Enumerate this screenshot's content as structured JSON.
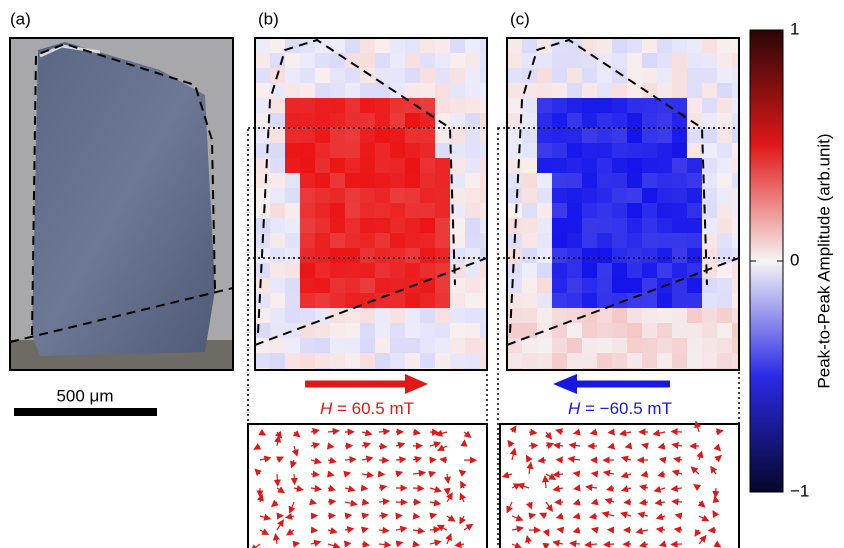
{
  "panels": [
    {
      "label": "(a)"
    },
    {
      "label": "(b)"
    },
    {
      "label": "(c)"
    }
  ],
  "scale_bar": {
    "label": "500 μm"
  },
  "fields": [
    {
      "symbol": "H",
      "text": " = 60.5 mT"
    },
    {
      "symbol": "H",
      "text": " = −60.5 mT"
    }
  ],
  "colorbar": {
    "label": "Peak-to-Peak Amplitude (arb.unit)",
    "lim": [
      -1,
      1
    ],
    "ticks": [
      {
        "value": 1,
        "label": "1"
      },
      {
        "value": 0,
        "label": "0"
      },
      {
        "value": -1,
        "label": "−1"
      }
    ]
  }
}
